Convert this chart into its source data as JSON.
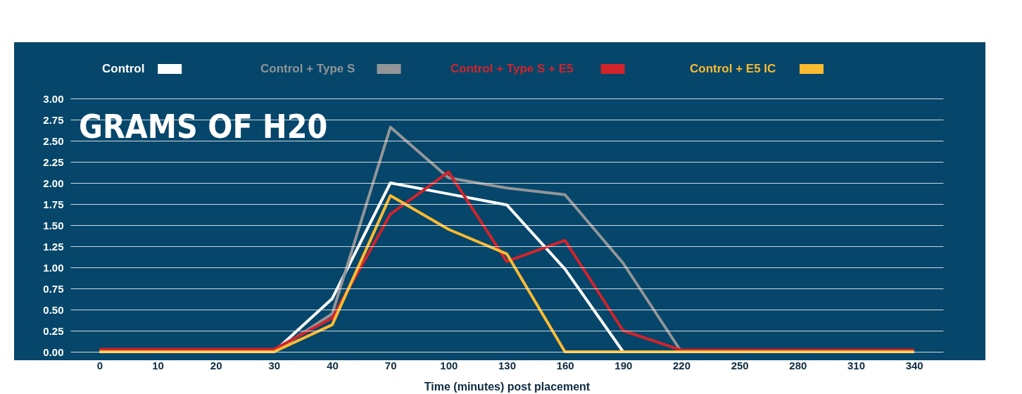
{
  "chart_data": {
    "type": "line",
    "title": "GRAMS OF H20",
    "xlabel": "Time (minutes) post placement",
    "categories": [
      "0",
      "10",
      "20",
      "30",
      "40",
      "70",
      "100",
      "130",
      "160",
      "190",
      "220",
      "250",
      "280",
      "310",
      "340"
    ],
    "series": [
      {
        "name": "Control",
        "color": "#ffffff",
        "values": [
          0,
          0,
          0,
          0,
          0.63,
          2.0,
          1.87,
          1.74,
          0.98,
          0,
          0,
          0,
          0,
          0,
          0
        ]
      },
      {
        "name": "Control + Type S",
        "color": "#939598",
        "values": [
          null,
          null,
          0,
          0,
          0.45,
          2.66,
          2.06,
          1.94,
          1.86,
          1.05,
          0,
          null,
          null,
          null,
          null
        ]
      },
      {
        "name": "Control + Type S + E5",
        "color": "#d2232a",
        "values": [
          0.03,
          0.03,
          0.03,
          0.03,
          0.4,
          1.63,
          2.13,
          1.07,
          1.32,
          0.25,
          0.02,
          0.02,
          0.02,
          0.02,
          0.02
        ]
      },
      {
        "name": "Control + E5 IC",
        "color": "#fdbb30",
        "values": [
          0,
          0,
          0,
          0,
          0.32,
          1.85,
          1.45,
          1.16,
          0,
          0,
          0,
          0,
          0,
          0,
          0
        ]
      }
    ],
    "ylim": [
      0,
      3
    ],
    "yticks": [
      {
        "value": 0,
        "label": "0.00"
      },
      {
        "value": 0.25,
        "label": "0.25"
      },
      {
        "value": 0.5,
        "label": "0.50"
      },
      {
        "value": 0.75,
        "label": "0.75"
      },
      {
        "value": 1,
        "label": "1.00"
      },
      {
        "value": 1.25,
        "label": "1.25"
      },
      {
        "value": 1.5,
        "label": "1.50"
      },
      {
        "value": 1.75,
        "label": "1.75"
      },
      {
        "value": 2,
        "label": "2.00"
      },
      {
        "value": 2.25,
        "label": "2.25"
      },
      {
        "value": 2.5,
        "label": "2.50"
      },
      {
        "value": 2.75,
        "label": "2.75"
      },
      {
        "value": 3,
        "label": "3.00"
      }
    ],
    "grid": "y",
    "legend": "top",
    "marker": "none",
    "line_style": "solid"
  }
}
